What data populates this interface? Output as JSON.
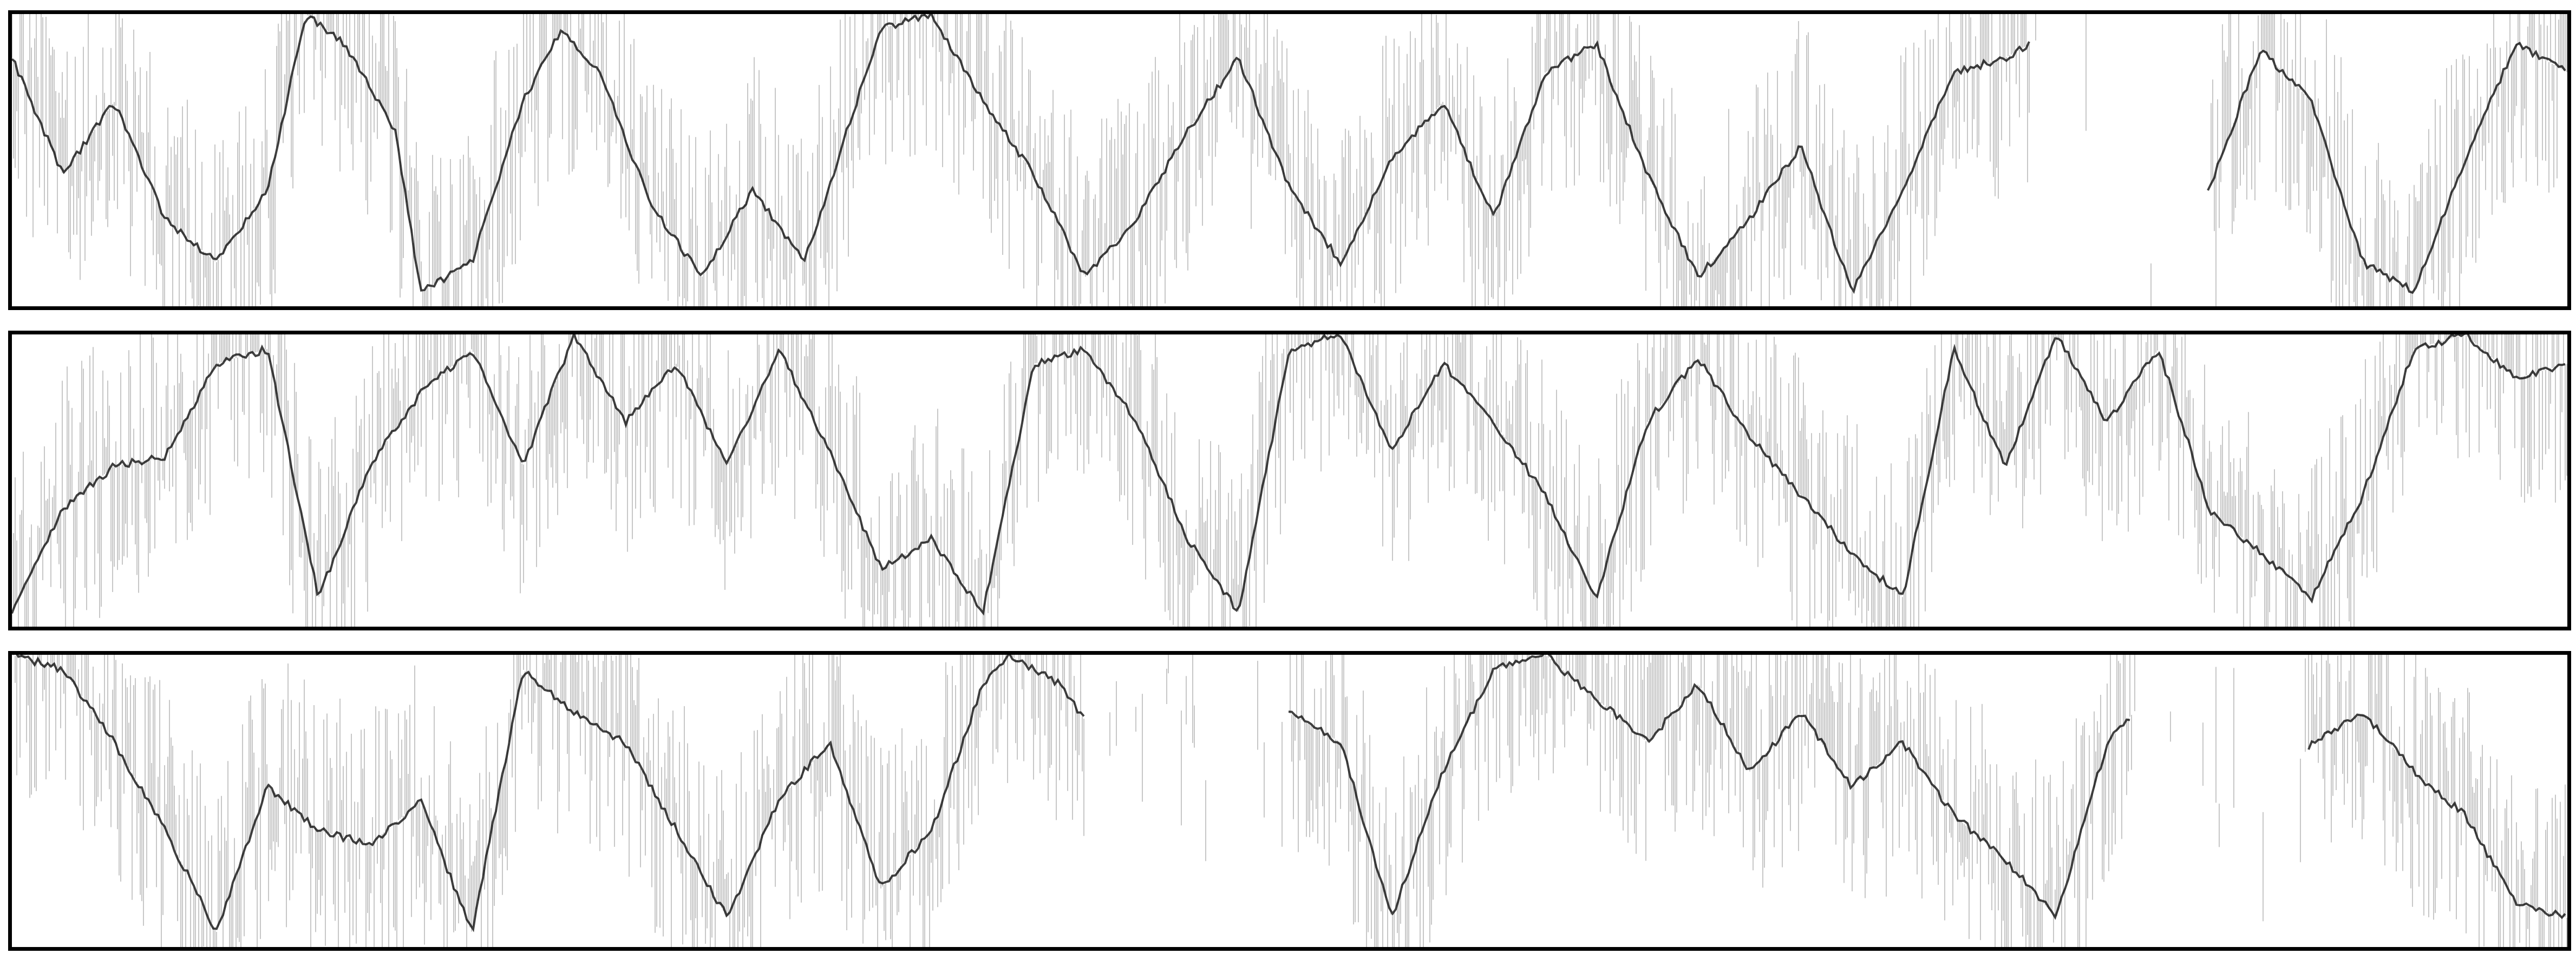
{
  "figure": {
    "panel_count": 3,
    "style": "grayscale strip plots of dense vertical line traces",
    "colors": {
      "background": "#ffffff",
      "ink": "#000000",
      "frame": "#000000"
    }
  }
}
